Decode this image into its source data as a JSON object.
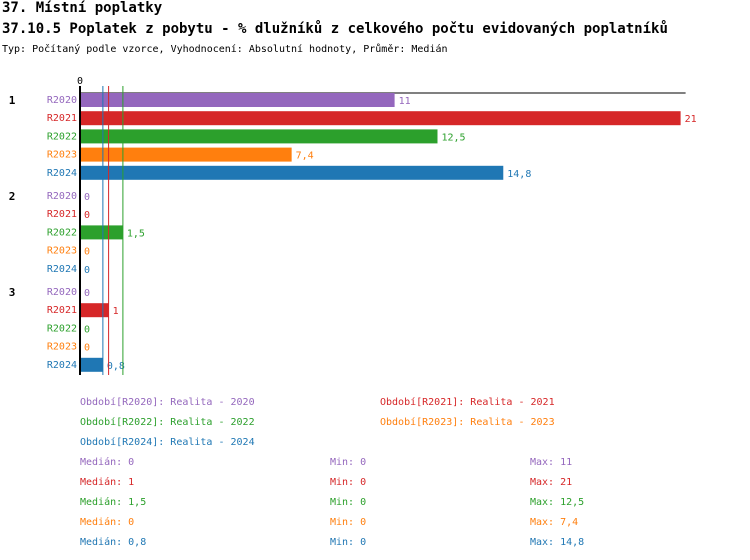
{
  "header": {
    "section": "37. Místní poplatky",
    "title": "37.10.5 Poplatek z pobytu - % dlužníků z celkového počtu evidovaných poplatníků",
    "subtitle": "Typ: Počítaný podle vzorce, Vyhodnocení: Absolutní hodnoty, Průměr: Medián"
  },
  "colors": {
    "R2020": "#9467bd",
    "R2021": "#d62728",
    "R2022": "#2ca02c",
    "R2023": "#ff7f0e",
    "R2024": "#1f77b4"
  },
  "chart_data": {
    "type": "bar",
    "orientation": "horizontal",
    "axis_zero_label": "0",
    "categories": [
      "1",
      "2",
      "3"
    ],
    "series": [
      {
        "name": "R2020",
        "values": [
          11,
          0,
          0
        ],
        "labels": [
          "11",
          "0",
          "0"
        ]
      },
      {
        "name": "R2021",
        "values": [
          21,
          0,
          1
        ],
        "labels": [
          "21",
          "0",
          "1"
        ]
      },
      {
        "name": "R2022",
        "values": [
          12.5,
          1.5,
          0
        ],
        "labels": [
          "12,5",
          "1,5",
          "0"
        ]
      },
      {
        "name": "R2023",
        "values": [
          7.4,
          0,
          0
        ],
        "labels": [
          "7,4",
          "0",
          "0"
        ]
      },
      {
        "name": "R2024",
        "values": [
          14.8,
          0,
          0.8
        ],
        "labels": [
          "14,8",
          "0",
          "0,8"
        ]
      }
    ],
    "median_lines": {
      "R2020": 0,
      "R2021": 1,
      "R2022": 1.5,
      "R2023": 0,
      "R2024": 0.8
    },
    "xlim": [
      0,
      21
    ]
  },
  "legend": [
    {
      "series": "R2020",
      "text": "Období[R2020]: Realita - 2020"
    },
    {
      "series": "R2021",
      "text": "Období[R2021]: Realita - 2021"
    },
    {
      "series": "R2022",
      "text": "Období[R2022]: Realita - 2022"
    },
    {
      "series": "R2023",
      "text": "Období[R2023]: Realita - 2023"
    },
    {
      "series": "R2024",
      "text": "Období[R2024]: Realita - 2024"
    }
  ],
  "stats": [
    {
      "series": "R2020",
      "median": "Medián: 0",
      "min": "Min: 0",
      "max": "Max: 11"
    },
    {
      "series": "R2021",
      "median": "Medián: 1",
      "min": "Min: 0",
      "max": "Max: 21"
    },
    {
      "series": "R2022",
      "median": "Medián: 1,5",
      "min": "Min: 0",
      "max": "Max: 12,5"
    },
    {
      "series": "R2023",
      "median": "Medián: 0",
      "min": "Min: 0",
      "max": "Max: 7,4"
    },
    {
      "series": "R2024",
      "median": "Medián: 0,8",
      "min": "Min: 0",
      "max": "Max: 14,8"
    }
  ]
}
